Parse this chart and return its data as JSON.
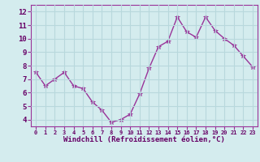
{
  "x": [
    0,
    1,
    2,
    3,
    4,
    5,
    6,
    7,
    8,
    9,
    10,
    11,
    12,
    13,
    14,
    15,
    16,
    17,
    18,
    19,
    20,
    21,
    22,
    23
  ],
  "y": [
    7.5,
    6.5,
    7.0,
    7.5,
    6.5,
    6.3,
    5.3,
    4.7,
    3.8,
    4.0,
    4.4,
    5.9,
    7.8,
    9.4,
    9.8,
    11.6,
    10.5,
    10.1,
    11.6,
    10.6,
    10.0,
    9.5,
    8.7,
    7.9
  ],
  "line_color": "#993399",
  "marker": "*",
  "marker_size": 4,
  "xlabel": "Windchill (Refroidissement éolien,°C)",
  "xlim": [
    -0.5,
    23.5
  ],
  "ylim": [
    3.5,
    12.5
  ],
  "yticks": [
    4,
    5,
    6,
    7,
    8,
    9,
    10,
    11,
    12
  ],
  "xticks": [
    0,
    1,
    2,
    3,
    4,
    5,
    6,
    7,
    8,
    9,
    10,
    11,
    12,
    13,
    14,
    15,
    16,
    17,
    18,
    19,
    20,
    21,
    22,
    23
  ],
  "xtick_labels": [
    "0",
    "1",
    "2",
    "3",
    "4",
    "5",
    "6",
    "7",
    "8",
    "9",
    "10",
    "11",
    "12",
    "13",
    "14",
    "15",
    "16",
    "17",
    "18",
    "19",
    "20",
    "21",
    "22",
    "23"
  ],
  "background_color": "#d4ecee",
  "grid_color": "#b8d8dc",
  "tick_color": "#660066",
  "label_color": "#660066",
  "spine_color": "#993399",
  "xtick_fontsize": 5.0,
  "ytick_fontsize": 6.5,
  "xlabel_fontsize": 6.5
}
